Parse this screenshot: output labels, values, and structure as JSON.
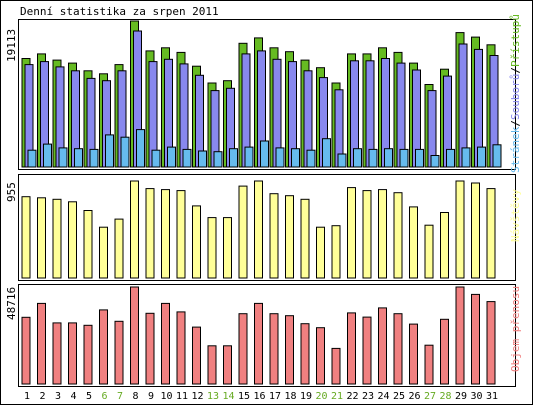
{
  "title": "Denní statistika za srpen 2011",
  "colors": {
    "background": "#ffffff",
    "border": "#000000",
    "pristupu": "#66bb22",
    "souboru": "#8888ee",
    "stranek": "#66bbee",
    "navstevy": "#ffff99",
    "prenosy": "#f08080",
    "weekend_text": "#66aa22",
    "weekday_text": "#000000"
  },
  "chart_data": [
    {
      "type": "bar",
      "title": "Denní statistika za srpen 2011",
      "y_max_label": "19113",
      "ylim": [
        0,
        19113
      ],
      "legend_labels": [
        "Stránek",
        "Souborů",
        "Přístupů"
      ],
      "legend_separator": "/",
      "categories": [
        "1",
        "2",
        "3",
        "4",
        "5",
        "6",
        "7",
        "8",
        "9",
        "10",
        "11",
        "12",
        "13",
        "14",
        "15",
        "16",
        "17",
        "18",
        "19",
        "20",
        "21",
        "22",
        "23",
        "24",
        "25",
        "26",
        "27",
        "28",
        "29",
        "30",
        "31"
      ],
      "series": [
        {
          "name": "Přístupů",
          "values": [
            14200,
            14800,
            14000,
            13600,
            12600,
            12200,
            13400,
            19113,
            15200,
            15600,
            15000,
            13200,
            11000,
            11300,
            16200,
            16900,
            15600,
            15100,
            14000,
            13000,
            11000,
            14800,
            14800,
            15600,
            15000,
            13600,
            10800,
            12800,
            17600,
            17000,
            16000
          ]
        },
        {
          "name": "Souborů",
          "values": [
            13400,
            13800,
            13100,
            12600,
            11600,
            11300,
            12600,
            17800,
            13800,
            14100,
            13500,
            12000,
            10000,
            10300,
            14800,
            15200,
            14100,
            13800,
            12600,
            11700,
            10100,
            13900,
            13900,
            14200,
            13600,
            12700,
            10000,
            11900,
            16100,
            15400,
            14600
          ]
        },
        {
          "name": "Stránek",
          "values": [
            2200,
            3000,
            2500,
            2400,
            2300,
            4200,
            3900,
            4900,
            2200,
            2600,
            2300,
            2100,
            2000,
            2400,
            2600,
            3400,
            2500,
            2400,
            2200,
            3700,
            1700,
            2400,
            2300,
            2400,
            2300,
            2300,
            1500,
            2300,
            2500,
            2600,
            2900
          ]
        }
      ]
    },
    {
      "type": "bar",
      "y_max_label": "955",
      "ylim": [
        0,
        955
      ],
      "legend_labels": [
        "Návštěvy"
      ],
      "categories": [
        "1",
        "2",
        "3",
        "4",
        "5",
        "6",
        "7",
        "8",
        "9",
        "10",
        "11",
        "12",
        "13",
        "14",
        "15",
        "16",
        "17",
        "18",
        "19",
        "20",
        "21",
        "22",
        "23",
        "24",
        "25",
        "26",
        "27",
        "28",
        "29",
        "30",
        "31"
      ],
      "series": [
        {
          "name": "Návštěvy",
          "values": [
            800,
            790,
            775,
            750,
            665,
            500,
            580,
            955,
            880,
            870,
            860,
            710,
            595,
            595,
            905,
            955,
            830,
            810,
            775,
            500,
            515,
            890,
            860,
            870,
            840,
            700,
            520,
            645,
            955,
            935,
            880
          ]
        }
      ]
    },
    {
      "type": "bar",
      "y_max_label": "48716",
      "ylim": [
        0,
        48716
      ],
      "legend_labels": [
        "Objem přenosu"
      ],
      "categories": [
        "1",
        "2",
        "3",
        "4",
        "5",
        "6",
        "7",
        "8",
        "9",
        "10",
        "11",
        "12",
        "13",
        "14",
        "15",
        "16",
        "17",
        "18",
        "19",
        "20",
        "21",
        "22",
        "23",
        "24",
        "25",
        "26",
        "27",
        "28",
        "29",
        "30",
        "31"
      ],
      "series": [
        {
          "name": "Objem přenosu",
          "values": [
            33500,
            40500,
            30700,
            30700,
            29500,
            37200,
            31500,
            48716,
            35500,
            40500,
            36200,
            28600,
            19200,
            19200,
            35300,
            40500,
            35300,
            34300,
            30300,
            28300,
            17900,
            35700,
            33600,
            38200,
            35300,
            30100,
            19500,
            32500,
            48716,
            45000,
            41400
          ]
        }
      ]
    }
  ],
  "x_labels": [
    {
      "label": "1",
      "weekend": false
    },
    {
      "label": "2",
      "weekend": false
    },
    {
      "label": "3",
      "weekend": false
    },
    {
      "label": "4",
      "weekend": false
    },
    {
      "label": "5",
      "weekend": false
    },
    {
      "label": "6",
      "weekend": true
    },
    {
      "label": "7",
      "weekend": true
    },
    {
      "label": "8",
      "weekend": false
    },
    {
      "label": "9",
      "weekend": false
    },
    {
      "label": "10",
      "weekend": false
    },
    {
      "label": "11",
      "weekend": false
    },
    {
      "label": "12",
      "weekend": false
    },
    {
      "label": "13",
      "weekend": true
    },
    {
      "label": "14",
      "weekend": true
    },
    {
      "label": "15",
      "weekend": false
    },
    {
      "label": "16",
      "weekend": false
    },
    {
      "label": "17",
      "weekend": false
    },
    {
      "label": "18",
      "weekend": false
    },
    {
      "label": "19",
      "weekend": false
    },
    {
      "label": "20",
      "weekend": true
    },
    {
      "label": "21",
      "weekend": true
    },
    {
      "label": "22",
      "weekend": false
    },
    {
      "label": "23",
      "weekend": false
    },
    {
      "label": "24",
      "weekend": false
    },
    {
      "label": "25",
      "weekend": false
    },
    {
      "label": "26",
      "weekend": false
    },
    {
      "label": "27",
      "weekend": true
    },
    {
      "label": "28",
      "weekend": true
    },
    {
      "label": "29",
      "weekend": false
    },
    {
      "label": "30",
      "weekend": false
    },
    {
      "label": "31",
      "weekend": false
    }
  ]
}
